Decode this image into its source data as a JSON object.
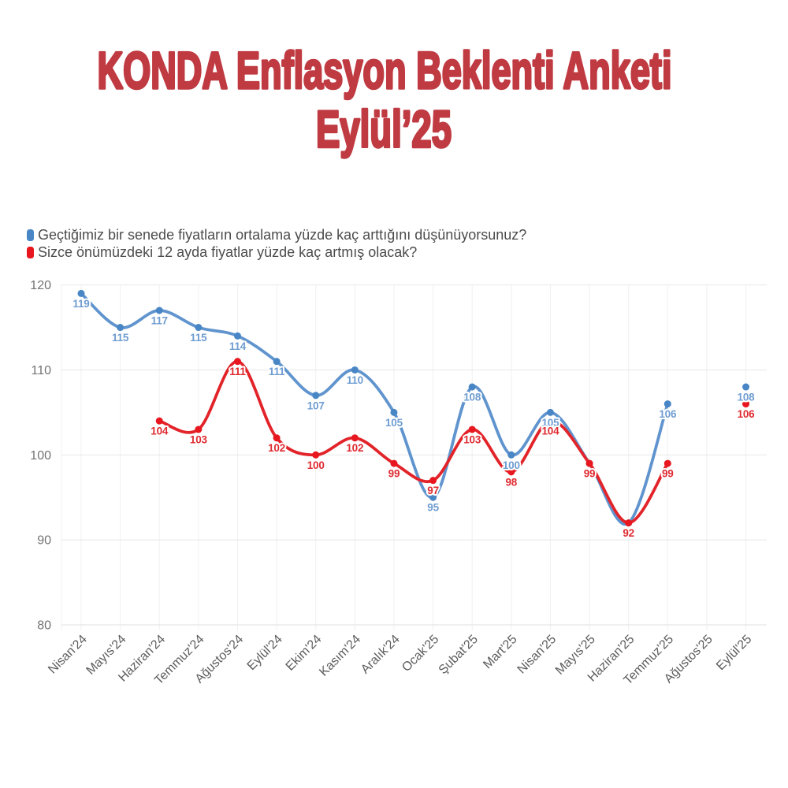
{
  "title": {
    "line1": "KONDA Enflasyon Beklenti Anketi",
    "line2": "Eylül’25",
    "color": "#c03a42"
  },
  "legend": {
    "items": [
      {
        "label": "Geçtiğimiz bir senede fiyatların ortalama yüzde kaç arttığını düşünüyorsunuz?",
        "color": "#4886c5"
      },
      {
        "label": "Sizce önümüzdeki 12 ayda fiyatlar yüzde kaç artmış olacak?",
        "color": "#e8171f"
      }
    ]
  },
  "chart_data": {
    "type": "line",
    "smooth": true,
    "grid": true,
    "legend_position": "top-left",
    "xlabel": "",
    "ylabel": "",
    "ylim": [
      80,
      120
    ],
    "yticks": [
      80,
      90,
      100,
      110,
      120
    ],
    "categories": [
      "Nisan'24",
      "Mayıs'24",
      "Haziran'24",
      "Temmuz'24",
      "Ağustos'24",
      "Eylül'24",
      "Ekim'24",
      "Kasım'24",
      "Aralık'24",
      "Ocak'25",
      "Şubat'25",
      "Mart'25",
      "Nisan'25",
      "Mayıs'25",
      "Haziran'25",
      "Temmuz'25",
      "Ağustos'25",
      "Eylül'25"
    ],
    "series": [
      {
        "name": "Geçtiğimiz bir senede fiyatların ortalama yüzde kaç arttığını düşünüyorsunuz?",
        "values": [
          119,
          115,
          117,
          115,
          114,
          111,
          107,
          110,
          105,
          95,
          108,
          100,
          105,
          99,
          92,
          106,
          null,
          108
        ],
        "line_color": "#6094ce",
        "point_color": "#4886c5",
        "label_color": "#6f9dd1",
        "labels_hidden_at": [
          "Mayıs'25",
          "Haziran'25"
        ]
      },
      {
        "name": "Sizce önümüzdeki 12 ayda fiyatlar yüzde kaç artmış olacak?",
        "values": [
          null,
          null,
          104,
          103,
          111,
          102,
          100,
          102,
          99,
          97,
          103,
          98,
          104,
          99,
          92,
          99,
          null,
          106
        ],
        "line_color": "#e2242a",
        "point_color": "#e8171f",
        "label_color": "#df2b31",
        "labels_hidden_at": []
      }
    ],
    "axis": {
      "ytick_color": "#737373",
      "xtick_color": "#5c5c5c",
      "hgrid_color": "#e7e7e7",
      "vgrid_color": "#f0f0f0",
      "axisline_color": "#e0e0e0"
    }
  }
}
